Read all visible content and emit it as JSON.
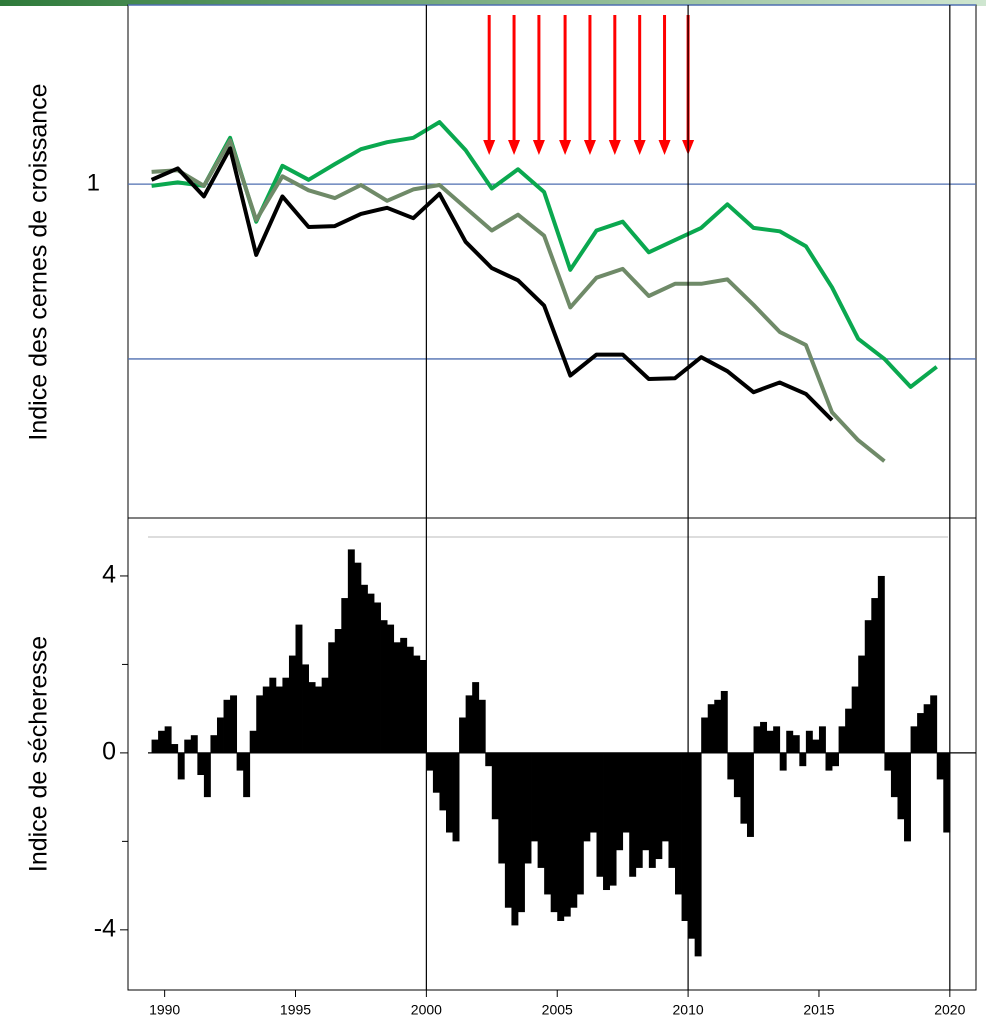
{
  "chart_data": [
    {
      "type": "line",
      "ylabel": "Indice des cernes de croissance",
      "xlim": [
        1988.6,
        2021
      ],
      "ylim": [
        0.618,
        1.205
      ],
      "yticks": [
        1
      ],
      "hlines": [
        1,
        0.8
      ],
      "hline_color": "#4f6fb0",
      "x": [
        1989.5,
        1990.5,
        1991.5,
        1992.5,
        1993.5,
        1994.5,
        1995.5,
        1996.5,
        1997.5,
        1998.5,
        1999.5,
        2000.5,
        2001.5,
        2002.5,
        2003.5,
        2004.5,
        2005.5,
        2006.5,
        2007.5,
        2008.5,
        2009.5,
        2010.5,
        2011.5,
        2012.5,
        2013.5,
        2014.5,
        2015.5,
        2016.5,
        2017.5,
        2018.5,
        2019.5
      ],
      "series": [
        {
          "color": "#0aa84f",
          "values": [
            0.998,
            1.002,
            0.998,
            1.053,
            0.957,
            1.021,
            1.005,
            1.023,
            1.04,
            1.048,
            1.053,
            1.071,
            1.039,
            0.995,
            1.017,
            0.991,
            0.902,
            0.947,
            0.957,
            0.922,
            0.936,
            0.95,
            0.977,
            0.95,
            0.946,
            0.929,
            0.882,
            0.823,
            0.8,
            0.768,
            0.791
          ]
        },
        {
          "color": "#6f8a68",
          "values": [
            1.014,
            1.016,
            0.998,
            1.05,
            0.959,
            1.009,
            0.993,
            0.984,
            0.999,
            0.981,
            0.994,
            0.999,
            0.973,
            0.947,
            0.965,
            0.941,
            0.859,
            0.893,
            0.903,
            0.872,
            0.886,
            0.886,
            0.891,
            0.862,
            0.831,
            0.816,
            0.739,
            0.707,
            0.683,
            null,
            null
          ]
        },
        {
          "color": "#000000",
          "values": [
            1.005,
            1.018,
            0.986,
            1.041,
            0.919,
            0.986,
            0.951,
            0.952,
            0.966,
            0.973,
            0.961,
            0.989,
            0.934,
            0.904,
            0.89,
            0.861,
            0.781,
            0.805,
            0.805,
            0.777,
            0.778,
            0.802,
            0.786,
            0.762,
            0.773,
            0.76,
            0.73,
            null,
            null,
            null,
            null
          ]
        }
      ],
      "arrow_years": [
        2002.4,
        2003.35,
        2004.3,
        2005.3,
        2006.25,
        2007.2,
        2008.15,
        2009.1,
        2010.0
      ],
      "arrow_color": "#ff0000"
    },
    {
      "type": "bar",
      "ylabel": "Indice de sécheresse",
      "xlim": [
        1988.6,
        2021
      ],
      "ylim": [
        -5.36,
        5.31
      ],
      "yticks": [
        -4,
        0,
        4
      ],
      "minor_yticks": [
        -2,
        2
      ],
      "xticks": [
        1990,
        1995,
        2000,
        2005,
        2010,
        2015,
        2020
      ],
      "vlines": [
        2000,
        2010,
        2020
      ],
      "zero_line": true,
      "color": "#000000",
      "x": [
        1989.5,
        1989.75,
        1990,
        1990.25,
        1990.5,
        1990.75,
        1991,
        1991.25,
        1991.5,
        1991.75,
        1992,
        1992.25,
        1992.5,
        1992.75,
        1993,
        1993.25,
        1993.5,
        1993.75,
        1994,
        1994.25,
        1994.5,
        1994.75,
        1995,
        1995.25,
        1995.5,
        1995.75,
        1996,
        1996.25,
        1996.5,
        1996.75,
        1997,
        1997.25,
        1997.5,
        1997.75,
        1998,
        1998.25,
        1998.5,
        1998.75,
        1999,
        1999.25,
        1999.5,
        1999.75,
        2000,
        2000.25,
        2000.5,
        2000.75,
        2001,
        2001.25,
        2001.5,
        2001.75,
        2002,
        2002.25,
        2002.5,
        2002.75,
        2003,
        2003.25,
        2003.5,
        2003.75,
        2004,
        2004.25,
        2004.5,
        2004.75,
        2005,
        2005.25,
        2005.5,
        2005.75,
        2006,
        2006.25,
        2006.5,
        2006.75,
        2007,
        2007.25,
        2007.5,
        2007.75,
        2008,
        2008.25,
        2008.5,
        2008.75,
        2009,
        2009.25,
        2009.5,
        2009.75,
        2010,
        2010.25,
        2010.5,
        2010.75,
        2011,
        2011.25,
        2011.5,
        2011.75,
        2012,
        2012.25,
        2012.5,
        2012.75,
        2013,
        2013.25,
        2013.5,
        2013.75,
        2014,
        2014.25,
        2014.5,
        2014.75,
        2015,
        2015.25,
        2015.5,
        2015.75,
        2016,
        2016.25,
        2016.5,
        2016.75,
        2017,
        2017.25,
        2017.5,
        2017.75,
        2018,
        2018.25,
        2018.5,
        2018.75,
        2019,
        2019.25,
        2019.5,
        2019.75
      ],
      "values": [
        0.3,
        0.5,
        0.6,
        0.2,
        -0.6,
        0.3,
        0.4,
        -0.5,
        -1.0,
        0.4,
        0.8,
        1.2,
        1.3,
        -0.4,
        -1.0,
        0.5,
        1.3,
        1.5,
        1.7,
        1.5,
        1.7,
        2.2,
        2.9,
        2.0,
        1.6,
        1.5,
        1.7,
        2.5,
        2.8,
        3.5,
        4.6,
        4.3,
        3.8,
        3.6,
        3.4,
        3.0,
        2.9,
        2.5,
        2.6,
        2.4,
        2.2,
        2.1,
        -0.4,
        -0.9,
        -1.3,
        -1.8,
        -2.0,
        0.8,
        1.3,
        1.6,
        1.2,
        -0.3,
        -1.5,
        -2.5,
        -3.5,
        -3.9,
        -3.6,
        -2.5,
        -2.0,
        -2.6,
        -3.2,
        -3.6,
        -3.8,
        -3.7,
        -3.5,
        -3.2,
        -2.0,
        -1.8,
        -2.8,
        -3.1,
        -3.0,
        -2.2,
        -1.8,
        -2.8,
        -2.6,
        -2.2,
        -2.6,
        -2.4,
        -2.0,
        -2.6,
        -3.2,
        -3.8,
        -4.2,
        -4.6,
        0.8,
        1.1,
        1.2,
        1.4,
        -0.6,
        -1.0,
        -1.6,
        -1.9,
        0.6,
        0.7,
        0.5,
        0.6,
        -0.4,
        0.5,
        0.4,
        -0.3,
        0.5,
        0.3,
        0.6,
        -0.4,
        -0.3,
        0.6,
        1.0,
        1.5,
        2.2,
        3.0,
        3.5,
        4.0,
        -0.4,
        -1.0,
        -1.5,
        -2.0,
        0.6,
        0.9,
        1.1,
        1.3,
        -0.6,
        -1.8
      ]
    }
  ]
}
